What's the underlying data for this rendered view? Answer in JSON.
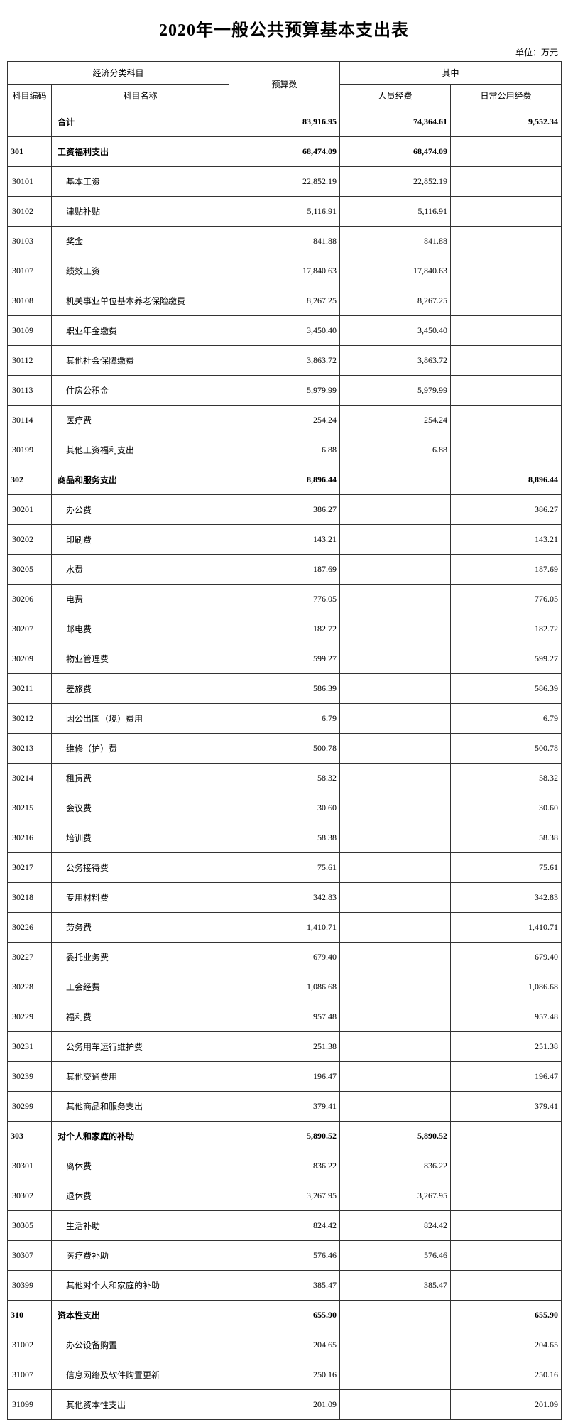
{
  "title": "2020年一般公共预算基本支出表",
  "unit": "单位：万元",
  "headers": {
    "econ_group": "经济分类科目",
    "code": "科目编码",
    "name": "科目名称",
    "budget": "预算数",
    "of_which": "其中",
    "personnel": "人员经费",
    "daily": "日常公用经费"
  },
  "total": {
    "name": "合计",
    "budget": "83,916.95",
    "personnel": "74,364.61",
    "daily": "9,552.34"
  },
  "sections": [
    {
      "code": "301",
      "name": "工资福利支出",
      "budget": "68,474.09",
      "personnel": "68,474.09",
      "daily": "",
      "items": [
        {
          "code": "30101",
          "name": "基本工资",
          "budget": "22,852.19",
          "personnel": "22,852.19",
          "daily": ""
        },
        {
          "code": "30102",
          "name": "津贴补贴",
          "budget": "5,116.91",
          "personnel": "5,116.91",
          "daily": ""
        },
        {
          "code": "30103",
          "name": "奖金",
          "budget": "841.88",
          "personnel": "841.88",
          "daily": ""
        },
        {
          "code": "30107",
          "name": "绩效工资",
          "budget": "17,840.63",
          "personnel": "17,840.63",
          "daily": ""
        },
        {
          "code": "30108",
          "name": "机关事业单位基本养老保险缴费",
          "budget": "8,267.25",
          "personnel": "8,267.25",
          "daily": ""
        },
        {
          "code": "30109",
          "name": "职业年金缴费",
          "budget": "3,450.40",
          "personnel": "3,450.40",
          "daily": ""
        },
        {
          "code": "30112",
          "name": "其他社会保障缴费",
          "budget": "3,863.72",
          "personnel": "3,863.72",
          "daily": ""
        },
        {
          "code": "30113",
          "name": "住房公积金",
          "budget": "5,979.99",
          "personnel": "5,979.99",
          "daily": ""
        },
        {
          "code": "30114",
          "name": "医疗费",
          "budget": "254.24",
          "personnel": "254.24",
          "daily": ""
        },
        {
          "code": "30199",
          "name": "其他工资福利支出",
          "budget": "6.88",
          "personnel": "6.88",
          "daily": ""
        }
      ]
    },
    {
      "code": "302",
      "name": "商品和服务支出",
      "budget": "8,896.44",
      "personnel": "",
      "daily": "8,896.44",
      "items": [
        {
          "code": "30201",
          "name": "办公费",
          "budget": "386.27",
          "personnel": "",
          "daily": "386.27"
        },
        {
          "code": "30202",
          "name": "印刷费",
          "budget": "143.21",
          "personnel": "",
          "daily": "143.21"
        },
        {
          "code": "30205",
          "name": "水费",
          "budget": "187.69",
          "personnel": "",
          "daily": "187.69"
        },
        {
          "code": "30206",
          "name": "电费",
          "budget": "776.05",
          "personnel": "",
          "daily": "776.05"
        },
        {
          "code": "30207",
          "name": "邮电费",
          "budget": "182.72",
          "personnel": "",
          "daily": "182.72"
        },
        {
          "code": "30209",
          "name": "物业管理费",
          "budget": "599.27",
          "personnel": "",
          "daily": "599.27"
        },
        {
          "code": "30211",
          "name": "差旅费",
          "budget": "586.39",
          "personnel": "",
          "daily": "586.39"
        },
        {
          "code": "30212",
          "name": "因公出国（境）费用",
          "budget": "6.79",
          "personnel": "",
          "daily": "6.79"
        },
        {
          "code": "30213",
          "name": "维修（护）费",
          "budget": "500.78",
          "personnel": "",
          "daily": "500.78"
        },
        {
          "code": "30214",
          "name": "租赁费",
          "budget": "58.32",
          "personnel": "",
          "daily": "58.32"
        },
        {
          "code": "30215",
          "name": "会议费",
          "budget": "30.60",
          "personnel": "",
          "daily": "30.60"
        },
        {
          "code": "30216",
          "name": "培训费",
          "budget": "58.38",
          "personnel": "",
          "daily": "58.38"
        },
        {
          "code": "30217",
          "name": "公务接待费",
          "budget": "75.61",
          "personnel": "",
          "daily": "75.61"
        },
        {
          "code": "30218",
          "name": "专用材料费",
          "budget": "342.83",
          "personnel": "",
          "daily": "342.83"
        },
        {
          "code": "30226",
          "name": "劳务费",
          "budget": "1,410.71",
          "personnel": "",
          "daily": "1,410.71"
        },
        {
          "code": "30227",
          "name": "委托业务费",
          "budget": "679.40",
          "personnel": "",
          "daily": "679.40"
        },
        {
          "code": "30228",
          "name": "工会经费",
          "budget": "1,086.68",
          "personnel": "",
          "daily": "1,086.68"
        },
        {
          "code": "30229",
          "name": "福利费",
          "budget": "957.48",
          "personnel": "",
          "daily": "957.48"
        },
        {
          "code": "30231",
          "name": "公务用车运行维护费",
          "budget": "251.38",
          "personnel": "",
          "daily": "251.38"
        },
        {
          "code": "30239",
          "name": "其他交通费用",
          "budget": "196.47",
          "personnel": "",
          "daily": "196.47"
        },
        {
          "code": "30299",
          "name": "其他商品和服务支出",
          "budget": "379.41",
          "personnel": "",
          "daily": "379.41"
        }
      ]
    },
    {
      "code": "303",
      "name": "对个人和家庭的补助",
      "budget": "5,890.52",
      "personnel": "5,890.52",
      "daily": "",
      "items": [
        {
          "code": "30301",
          "name": "离休费",
          "budget": "836.22",
          "personnel": "836.22",
          "daily": ""
        },
        {
          "code": "30302",
          "name": "退休费",
          "budget": "3,267.95",
          "personnel": "3,267.95",
          "daily": ""
        },
        {
          "code": "30305",
          "name": "生活补助",
          "budget": "824.42",
          "personnel": "824.42",
          "daily": ""
        },
        {
          "code": "30307",
          "name": "医疗费补助",
          "budget": "576.46",
          "personnel": "576.46",
          "daily": ""
        },
        {
          "code": "30399",
          "name": "其他对个人和家庭的补助",
          "budget": "385.47",
          "personnel": "385.47",
          "daily": ""
        }
      ]
    },
    {
      "code": "310",
      "name": "资本性支出",
      "budget": "655.90",
      "personnel": "",
      "daily": "655.90",
      "items": [
        {
          "code": "31002",
          "name": "办公设备购置",
          "budget": "204.65",
          "personnel": "",
          "daily": "204.65"
        },
        {
          "code": "31007",
          "name": "信息网络及软件购置更新",
          "budget": "250.16",
          "personnel": "",
          "daily": "250.16"
        },
        {
          "code": "31099",
          "name": "其他资本性支出",
          "budget": "201.09",
          "personnel": "",
          "daily": "201.09"
        }
      ]
    }
  ]
}
